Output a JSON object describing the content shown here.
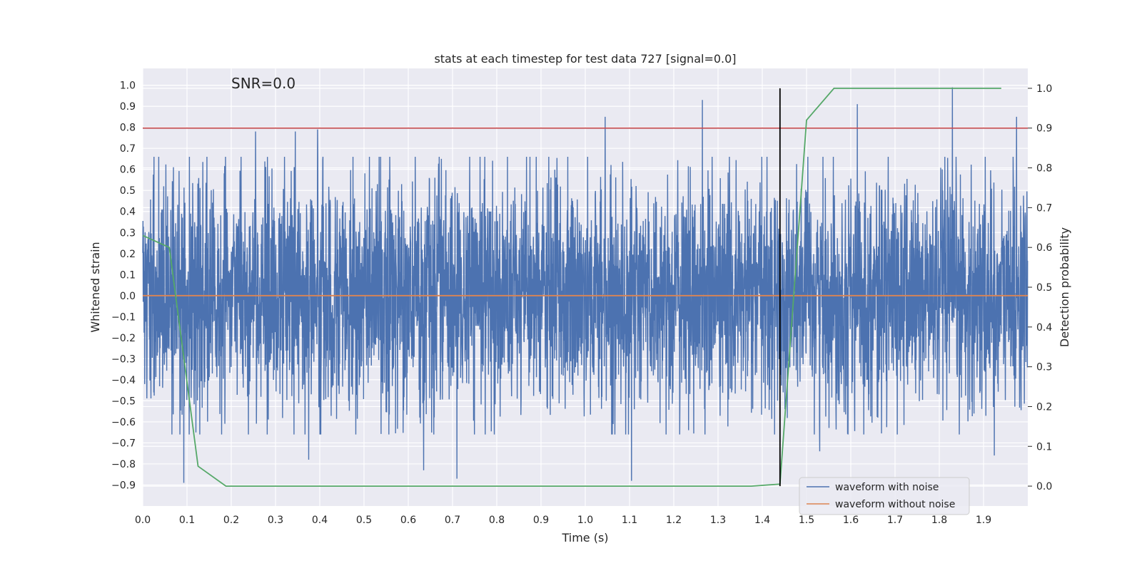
{
  "chart_data": {
    "type": "line",
    "title": "stats at each timestep for test data 727 [signal=0.0]",
    "annotation": "SNR=0.0",
    "xlabel": "Time (s)",
    "ylabel": "Whitened strain",
    "y2label": "Detection probability",
    "xlim": [
      0.0,
      2.0
    ],
    "ylim": [
      -1.0,
      1.08
    ],
    "y2lim": [
      -0.05,
      1.05
    ],
    "x_ticks": [
      "0.0",
      "0.1",
      "0.2",
      "0.3",
      "0.4",
      "0.5",
      "0.6",
      "0.7",
      "0.8",
      "0.9",
      "1.0",
      "1.1",
      "1.2",
      "1.3",
      "1.4",
      "1.5",
      "1.6",
      "1.7",
      "1.8",
      "1.9"
    ],
    "y_ticks": [
      "1.0",
      "0.9",
      "0.8",
      "0.7",
      "0.6",
      "0.5",
      "0.4",
      "0.3",
      "0.2",
      "0.1",
      "0.0",
      "−0.1",
      "−0.2",
      "−0.3",
      "−0.4",
      "−0.5",
      "−0.6",
      "−0.7",
      "−0.8",
      "−0.9"
    ],
    "y2_ticks": [
      "1.0",
      "0.9",
      "0.8",
      "0.7",
      "0.6",
      "0.5",
      "0.4",
      "0.3",
      "0.2",
      "0.1",
      "0.0"
    ],
    "grid": true,
    "legend_placement": "lower-right",
    "threshold": 0.9,
    "event_time": 1.44,
    "noise": {
      "sample_count": 4096,
      "std": 0.27,
      "peaks": [
        [
          0.255,
          0.78
        ],
        [
          0.345,
          0.78
        ],
        [
          0.395,
          0.79
        ],
        [
          1.045,
          0.85
        ],
        [
          1.265,
          0.93
        ],
        [
          1.615,
          0.91
        ],
        [
          1.83,
          0.99
        ],
        [
          1.975,
          0.85
        ],
        [
          0.093,
          -0.89
        ],
        [
          0.71,
          -0.87
        ],
        [
          1.105,
          -0.88
        ],
        [
          1.53,
          -0.74
        ],
        [
          1.925,
          -0.76
        ],
        [
          0.635,
          -0.83
        ],
        [
          0.375,
          -0.78
        ]
      ]
    },
    "series": [
      {
        "name": "waveform with noise",
        "color": "#4c72b0"
      },
      {
        "name": "waveform without noise",
        "color": "#dd8452",
        "y": 0.0
      },
      {
        "color": "#55a868",
        "axis": "right",
        "points": [
          [
            0.0,
            0.63
          ],
          [
            0.06,
            0.6
          ],
          [
            0.125,
            0.05
          ],
          [
            0.188,
            0.0
          ],
          [
            1.375,
            0.0
          ],
          [
            1.44,
            0.005
          ],
          [
            1.5,
            0.92
          ],
          [
            1.562,
            1.0
          ],
          [
            1.94,
            1.0
          ]
        ]
      },
      {
        "color": "#c44e52",
        "axis": "right",
        "y": 0.9
      },
      {
        "color": "#000000",
        "type": "vline",
        "x": 1.44,
        "y_from_right": [
          0.0,
          1.0
        ]
      }
    ],
    "colors": {
      "plot_background": "#eaeaf2",
      "grid": "#ffffff"
    }
  }
}
